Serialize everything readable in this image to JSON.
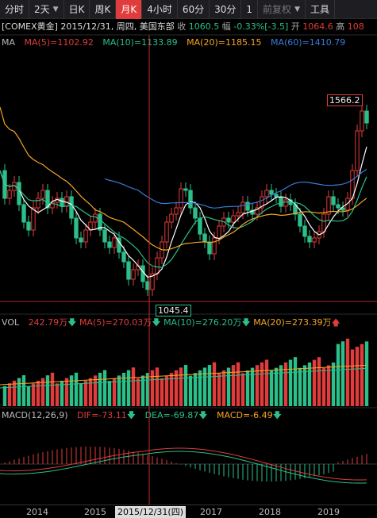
{
  "toolbar": {
    "tabs": [
      {
        "label": "分时"
      },
      {
        "label": "2天"
      },
      {
        "label": "日K"
      },
      {
        "label": "周K"
      },
      {
        "label": "月K"
      },
      {
        "label": "4小时"
      },
      {
        "label": "60分"
      },
      {
        "label": "30分"
      },
      {
        "label": "1"
      },
      {
        "label": "前复权"
      },
      {
        "label": "工具"
      }
    ]
  },
  "info": {
    "symbol": "[COMEX黄金]",
    "date": "2015/12/31, 周四, 美国东部",
    "close_label": "收",
    "close_value": "1060.5",
    "change_label": "幅",
    "change_value": "-0.33%[-3.5]",
    "open_label": "开",
    "open_value": "1064.6",
    "high_label": "高",
    "high_value": "108"
  },
  "ma": {
    "label": "MA",
    "ma5": "MA(5)=1102.92",
    "ma10": "MA(10)=1133.89",
    "ma20": "MA(20)=1185.15",
    "ma60": "MA(60)=1410.79"
  },
  "vol": {
    "label": "VOL",
    "value": "242.79万",
    "ma5": "MA(5)=270.03万",
    "ma10": "MA(10)=276.20万",
    "ma20": "MA(20)=273.39万"
  },
  "macd": {
    "label": "MACD(12,26,9)",
    "dif": "DIF=-73.11",
    "dea": "DEA=-69.87",
    "macd": "MACD=-6.49"
  },
  "price_tags": {
    "high": "1566.2",
    "low": "1045.4"
  },
  "xaxis": {
    "labels": [
      "2014",
      "2015",
      "2017",
      "2018",
      "2019"
    ],
    "cursor": "2015/12/31(四)"
  },
  "colors": {
    "up": "#e23b3b",
    "down": "#2bbf8a",
    "ma5": "#ffffff",
    "ma10": "#2bbf8a",
    "ma20": "#f5a623",
    "ma60": "#3a7bd5"
  }
}
